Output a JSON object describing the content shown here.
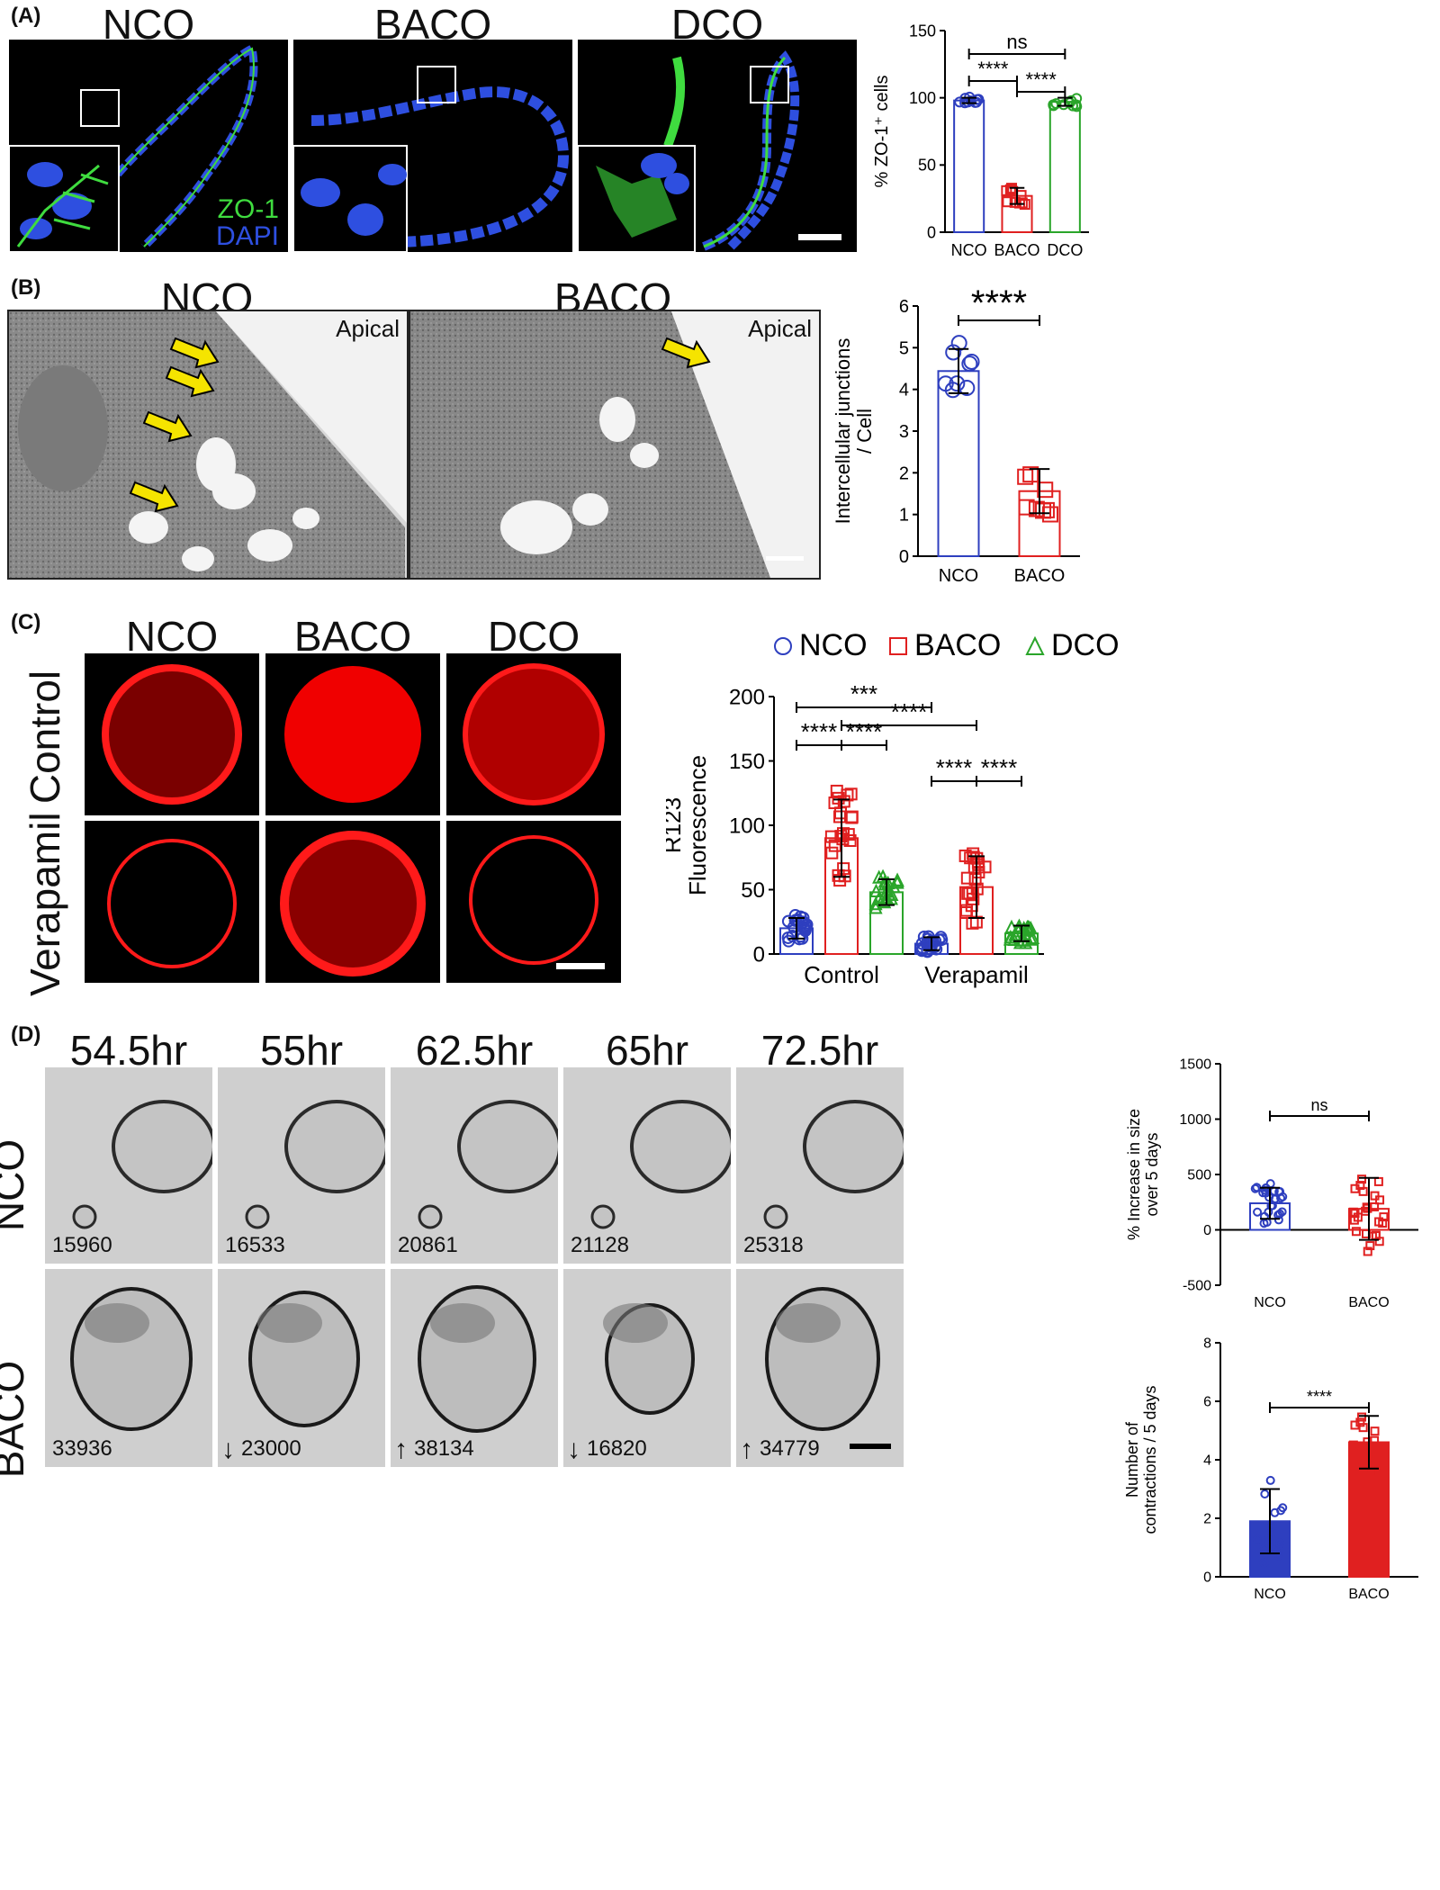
{
  "panelA": {
    "label": "(A)",
    "columns": [
      "NCO",
      "BACO",
      "DCO"
    ],
    "stain_zo1": "ZO-1",
    "stain_dapi": "DAPI",
    "colors": {
      "zo1": "#3fdc3f",
      "dapi": "#2e4fe0"
    }
  },
  "panelB": {
    "label": "(B)",
    "columns": [
      "NCO",
      "BACO"
    ],
    "apical": "Apical"
  },
  "panelC": {
    "label": "(C)",
    "columns": [
      "NCO",
      "BACO",
      "DCO"
    ],
    "rows": [
      "Control",
      "Verapamil"
    ]
  },
  "panelD": {
    "label": "(D)",
    "timepoints": [
      "54.5hr",
      "55hr",
      "62.5hr",
      "65hr",
      "72.5hr"
    ],
    "rows": [
      "NCO",
      "BACO"
    ],
    "nco_counts": [
      "15960",
      "16533",
      "20861",
      "21128",
      "25318"
    ],
    "baco_counts": [
      "33936",
      "23000",
      "38134",
      "16820",
      "34779"
    ],
    "baco_arrows": [
      "",
      "down",
      "up",
      "down",
      "up"
    ]
  },
  "chart_data": [
    {
      "id": "A-zo1",
      "type": "bar",
      "categories": [
        "NCO",
        "BACO",
        "DCO"
      ],
      "values": [
        98,
        27,
        97
      ],
      "errors": [
        2,
        6,
        3
      ],
      "colors": [
        "#2e3fbf",
        "#e02020",
        "#2aa52a"
      ],
      "ylabel": "% ZO-1⁺ cells",
      "ylim": [
        0,
        150
      ],
      "yticks": [
        0,
        50,
        100,
        150
      ],
      "significance": [
        {
          "from": 0,
          "to": 2,
          "label": "ns"
        },
        {
          "from": 0,
          "to": 1,
          "label": "****"
        },
        {
          "from": 1,
          "to": 2,
          "label": "****"
        }
      ]
    },
    {
      "id": "B-junctions",
      "type": "bar",
      "categories": [
        "NCO",
        "BACO"
      ],
      "values": [
        4.44,
        1.56
      ],
      "errors": [
        0.53,
        0.53
      ],
      "colors": [
        "#2e3fbf",
        "#e02020"
      ],
      "ylabel": "Intercellular junctions / Cell",
      "ylim": [
        0,
        6
      ],
      "yticks": [
        0,
        1,
        2,
        3,
        4,
        5,
        6
      ],
      "significance": [
        {
          "from": 0,
          "to": 1,
          "label": "****"
        }
      ]
    },
    {
      "id": "C-r123",
      "type": "bar",
      "groups": [
        "Control",
        "Verapamil"
      ],
      "series": [
        {
          "name": "NCO",
          "values": [
            20,
            8
          ],
          "errors": [
            8,
            5
          ],
          "color": "#2e3fbf",
          "marker": "circle"
        },
        {
          "name": "BACO",
          "values": [
            90,
            52
          ],
          "errors": [
            30,
            24
          ],
          "color": "#e02020",
          "marker": "square"
        },
        {
          "name": "DCO",
          "values": [
            48,
            16
          ],
          "errors": [
            10,
            6
          ],
          "color": "#2aa52a",
          "marker": "triangle"
        }
      ],
      "ylabel": "R123 Fluorescence",
      "ylim": [
        0,
        200
      ],
      "yticks": [
        0,
        50,
        100,
        150,
        200
      ],
      "significance": [
        {
          "from": "Control-NCO",
          "to": "Verapamil-NCO",
          "label": "***"
        },
        {
          "from": "Control-BACO",
          "to": "Verapamil-BACO",
          "label": "****"
        },
        {
          "from": "Control-NCO",
          "to": "Control-BACO",
          "label": "****"
        },
        {
          "from": "Control-BACO",
          "to": "Control-DCO",
          "label": "****"
        },
        {
          "from": "Verapamil-NCO",
          "to": "Verapamil-BACO",
          "label": "****"
        },
        {
          "from": "Verapamil-BACO",
          "to": "Verapamil-DCO",
          "label": "****"
        }
      ]
    },
    {
      "id": "D-size",
      "type": "bar",
      "categories": [
        "NCO",
        "BACO"
      ],
      "values": [
        240,
        190
      ],
      "errors": [
        140,
        280
      ],
      "colors": [
        "#2e3fbf",
        "#e02020"
      ],
      "ylabel": "% Increase in size over 5 days",
      "ylim": [
        -500,
        1500
      ],
      "yticks": [
        -500,
        0,
        500,
        1000,
        1500
      ],
      "significance": [
        {
          "from": 0,
          "to": 1,
          "label": "ns"
        }
      ]
    },
    {
      "id": "D-contractions",
      "type": "bar",
      "categories": [
        "NCO",
        "BACO"
      ],
      "values": [
        1.9,
        4.6
      ],
      "errors": [
        1.1,
        0.9
      ],
      "colors": [
        "#2e3fbf",
        "#e02020"
      ],
      "ylabel": "Number of contractions / 5 days",
      "ylim": [
        0,
        8
      ],
      "yticks": [
        0,
        2,
        4,
        6,
        8
      ],
      "significance": [
        {
          "from": 0,
          "to": 1,
          "label": "****"
        }
      ]
    }
  ]
}
